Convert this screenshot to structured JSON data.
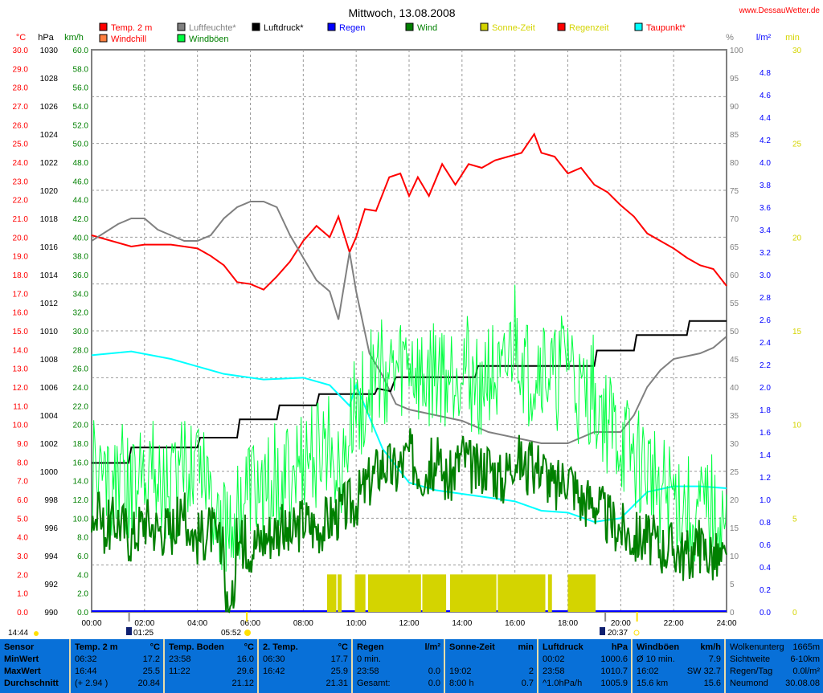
{
  "site": "www.DessauWetter.de",
  "chart_data": {
    "type": "line",
    "title": "Mittwoch, 13.08.2008",
    "legend": [
      {
        "label": "Temp. 2 m",
        "color": "#ff0000",
        "text_color": "#ff0000"
      },
      {
        "label": "Luftfeuchte*",
        "color": "#808080",
        "text_color": "#808080"
      },
      {
        "label": "Luftdruck*",
        "color": "#000000",
        "text_color": "#000000"
      },
      {
        "label": "Regen",
        "color": "#0000ff",
        "text_color": "#0000ff"
      },
      {
        "label": "Wind",
        "color": "#008000",
        "text_color": "#008000"
      },
      {
        "label": "Sonne-Zeit",
        "color": "#d4d400",
        "text_color": "#d4d400"
      },
      {
        "label": "Regenzeit",
        "color": "#ff0000",
        "text_color": "#d4d400"
      },
      {
        "label": "Taupunkt*",
        "color": "#00ffff",
        "text_color": "#ff0000"
      },
      {
        "label": "Windchill",
        "color": "#ff8040",
        "text_color": "#ff0000"
      },
      {
        "label": "Windböen",
        "color": "#00ff40",
        "text_color": "#008000"
      }
    ],
    "axes": {
      "temp": {
        "unit": "°C",
        "range": [
          0,
          30
        ],
        "step": 1,
        "color": "#ff0000"
      },
      "pressure": {
        "unit": "hPa",
        "range": [
          990,
          1030
        ],
        "step": 2,
        "color": "#000000"
      },
      "wind": {
        "unit": "km/h",
        "range": [
          0,
          60
        ],
        "step": 2,
        "color": "#008000"
      },
      "humidity": {
        "unit": "%",
        "range": [
          0,
          100
        ],
        "step": 5,
        "color": "#808080"
      },
      "rain": {
        "unit": "l/m²",
        "range": [
          0,
          5
        ],
        "step": 0.2,
        "max_label": 4.8,
        "color": "#0000ff"
      },
      "sun": {
        "unit": "min",
        "range": [
          0,
          30
        ],
        "step": 5,
        "color": "#d4d400"
      },
      "x": {
        "range": [
          0,
          24
        ],
        "ticks": [
          "00:00",
          "02:00",
          "04:00",
          "06:00",
          "08:00",
          "10:00",
          "12:00",
          "14:00",
          "16:00",
          "18:00",
          "20:00",
          "22:00",
          "24:00"
        ]
      }
    },
    "series": [
      {
        "name": "Temp. 2 m",
        "axis": "temp",
        "color": "#ff0000",
        "x": [
          0,
          1.5,
          2,
          3,
          4,
          4.5,
          5,
          5.5,
          6,
          6.5,
          7,
          7.5,
          8,
          8.5,
          9,
          9.33,
          9.75,
          10,
          10.33,
          10.75,
          11.25,
          11.67,
          12,
          12.33,
          12.75,
          13.25,
          13.75,
          14.25,
          14.75,
          15.25,
          15.75,
          16.25,
          16.73,
          17,
          17.5,
          18,
          18.5,
          19,
          19.5,
          20,
          20.5,
          21,
          21.5,
          22,
          22.5,
          23,
          23.5,
          24
        ],
        "y": [
          20.1,
          19.5,
          19.6,
          19.6,
          19.4,
          19.0,
          18.5,
          17.6,
          17.5,
          17.2,
          17.9,
          18.7,
          19.8,
          20.6,
          20.0,
          21.1,
          19.2,
          20.0,
          21.5,
          21.4,
          23.2,
          23.4,
          22.2,
          23.2,
          22.2,
          23.9,
          22.8,
          23.9,
          23.7,
          24.1,
          24.3,
          24.5,
          25.5,
          24.5,
          24.3,
          23.4,
          23.7,
          22.8,
          22.4,
          21.7,
          21.1,
          20.2,
          19.8,
          19.4,
          18.9,
          18.5,
          18.3,
          17.4
        ]
      },
      {
        "name": "Luftfeuchte*",
        "axis": "humidity",
        "color": "#808080",
        "x": [
          0,
          1,
          1.5,
          2,
          2.5,
          3.5,
          4,
          4.5,
          5,
          5.5,
          6,
          6.5,
          7,
          7.5,
          8,
          8.5,
          9,
          9.33,
          9.75,
          10,
          10.5,
          11,
          11.5,
          12,
          13,
          14,
          15,
          16,
          17,
          18,
          19,
          20,
          20.5,
          21,
          21.5,
          22,
          23,
          23.5,
          24
        ],
        "y": [
          66,
          69,
          70,
          70,
          68,
          66,
          66,
          67,
          70,
          72,
          73,
          73,
          72,
          67,
          63,
          59,
          57,
          52,
          64,
          57,
          46,
          42,
          37,
          36,
          35,
          34,
          32,
          31,
          30,
          30,
          32,
          32,
          35,
          40,
          43,
          45,
          46,
          47,
          49
        ]
      },
      {
        "name": "Luftdruck*",
        "axis": "pressure",
        "color": "#000000",
        "x": [
          0,
          1.4,
          1.5,
          4,
          4.1,
          5.5,
          5.6,
          7,
          7.1,
          8.5,
          8.6,
          10.7,
          10.8,
          11.3,
          11.5,
          14.5,
          14.6,
          19,
          19.1,
          20.5,
          20.6,
          22.5,
          22.6,
          24
        ],
        "y": [
          1000.6,
          1000.6,
          1001.7,
          1001.7,
          1002.4,
          1002.4,
          1003.7,
          1003.7,
          1004.7,
          1004.7,
          1005.5,
          1005.5,
          1005.9,
          1005.7,
          1006.7,
          1006.7,
          1007.5,
          1007.5,
          1008.6,
          1008.6,
          1009.7,
          1009.7,
          1010.7,
          1010.7
        ]
      },
      {
        "name": "Taupunkt*",
        "axis": "temp",
        "color": "#00ffff",
        "x": [
          0,
          1.5,
          3,
          5,
          6.5,
          8,
          9,
          9.75,
          10,
          11,
          12,
          13,
          14,
          15,
          16,
          17,
          18,
          19,
          20,
          21,
          22,
          23,
          24
        ],
        "y": [
          13.7,
          13.9,
          13.5,
          12.7,
          12.4,
          12.5,
          12.1,
          11.0,
          12.1,
          8.7,
          6.9,
          6.5,
          6.3,
          6.1,
          5.9,
          5.4,
          5.3,
          4.8,
          5.0,
          6.4,
          6.7,
          6.7,
          6.6
        ]
      },
      {
        "name": "Windböen",
        "axis": "wind",
        "color": "#00ff40",
        "x": [
          0,
          0.5,
          1,
          1.5,
          2,
          2.5,
          3,
          3.5,
          4,
          4.5,
          5,
          5.5,
          6,
          6.5,
          7,
          7.5,
          8,
          8.5,
          9,
          9.5,
          10,
          10.5,
          11,
          11.5,
          12,
          12.5,
          13,
          13.5,
          14,
          14.5,
          15,
          15.5,
          16,
          16.5,
          17,
          17.5,
          18,
          18.5,
          19,
          19.5,
          20,
          20.5,
          21,
          21.5,
          22,
          22.5,
          23,
          23.5,
          24
        ],
        "y": [
          16,
          13,
          15,
          12,
          17,
          14,
          13,
          15,
          18,
          14,
          9,
          10,
          13,
          12,
          15,
          14,
          16,
          17,
          18,
          16,
          22,
          24,
          26,
          25,
          27,
          24,
          26,
          25,
          27,
          24,
          26,
          23,
          30,
          25,
          27,
          24,
          28,
          22,
          24,
          20,
          18,
          16,
          15,
          13,
          12,
          11,
          10,
          11,
          9
        ]
      },
      {
        "name": "Wind",
        "axis": "wind",
        "color": "#008000",
        "x": [
          0,
          0.5,
          1,
          1.5,
          2,
          2.5,
          3,
          3.5,
          4,
          4.5,
          5,
          5.1,
          5.3,
          5.5,
          6,
          6.5,
          7,
          7.5,
          8,
          8.5,
          9,
          9.5,
          10,
          10.5,
          11,
          11.5,
          12,
          12.5,
          13,
          13.5,
          14,
          14.5,
          15,
          15.5,
          16,
          16.5,
          17,
          17.5,
          18,
          18.5,
          19,
          19.5,
          20,
          20.5,
          21,
          21.5,
          22,
          22.5,
          23,
          23.5,
          24
        ],
        "y": [
          11,
          9,
          10,
          8,
          10,
          9,
          9,
          10,
          8,
          9,
          6,
          0,
          0,
          8,
          7,
          8,
          9,
          8,
          10,
          9,
          10,
          11,
          12,
          14,
          16,
          15,
          17,
          15,
          16,
          14,
          17,
          15,
          16,
          14,
          17,
          15,
          16,
          13,
          15,
          12,
          12,
          10,
          9,
          8,
          8,
          7,
          7,
          6,
          7,
          6,
          5
        ]
      }
    ],
    "sun_intervals": [
      [
        8.9,
        9.25
      ],
      [
        9.3,
        9.45
      ],
      [
        9.95,
        10.35
      ],
      [
        10.45,
        12.45
      ],
      [
        12.5,
        13.4
      ],
      [
        13.55,
        15.3
      ],
      [
        15.35,
        17.15
      ],
      [
        17.25,
        17.4
      ],
      [
        18.0,
        19.05
      ]
    ],
    "sun_value_min": 2,
    "events": {
      "now": "14:44",
      "moonrise": "01:25",
      "sunrise": "05:52",
      "moonset": "19:25",
      "sunset": "20:37",
      "moonset_label": "20:37"
    }
  },
  "table": [
    {
      "rows": [
        [
          "Sensor",
          ""
        ],
        [
          "MinWert",
          ""
        ],
        [
          "MaxWert",
          ""
        ],
        [
          "Durchschnitt",
          ""
        ]
      ],
      "bold": true
    },
    {
      "rows": [
        [
          "Temp. 2 m",
          "°C"
        ],
        [
          "06:32",
          "17.2"
        ],
        [
          "16:44",
          "25.5"
        ],
        [
          "(+ 2.94 )",
          "20.84"
        ]
      ]
    },
    {
      "rows": [
        [
          "Temp. Boden",
          "°C"
        ],
        [
          "23:58",
          "16.0"
        ],
        [
          "11:22",
          "29.6"
        ],
        [
          "",
          "21.12"
        ]
      ]
    },
    {
      "rows": [
        [
          "2. Temp.",
          "°C"
        ],
        [
          "06:30",
          "17.7"
        ],
        [
          "16:42",
          "25.9"
        ],
        [
          "",
          "21.31"
        ]
      ]
    },
    {
      "rows": [
        [
          "Regen",
          "l/m²"
        ],
        [
          "0 min.",
          ""
        ],
        [
          "23:58",
          "0.0"
        ],
        [
          "Gesamt:",
          "0.0"
        ]
      ]
    },
    {
      "rows": [
        [
          "Sonne-Zeit",
          "min"
        ],
        [
          "",
          ""
        ],
        [
          "19:02",
          "2"
        ],
        [
          "8:00 h",
          "0.7"
        ]
      ]
    },
    {
      "rows": [
        [
          "Luftdruck",
          "hPa"
        ],
        [
          "00:02",
          "1000.6"
        ],
        [
          "23:58",
          "1010.7"
        ],
        [
          "^1.0hPa/h",
          "1005.9"
        ]
      ]
    },
    {
      "rows": [
        [
          "Windböen",
          "km/h"
        ],
        [
          "Ø 10 min.",
          "7.9"
        ],
        [
          "16:02",
          "SW 32.7"
        ],
        [
          "15.6 km",
          "15.6"
        ]
      ]
    },
    {
      "rows": [
        [
          "Wolkenunterg",
          "1665m"
        ],
        [
          "Sichtweite",
          "6-10km"
        ],
        [
          "Regen/Tag",
          "0.0l/m²"
        ],
        [
          "Neumond",
          "30.08.08"
        ]
      ],
      "plain": true
    }
  ]
}
